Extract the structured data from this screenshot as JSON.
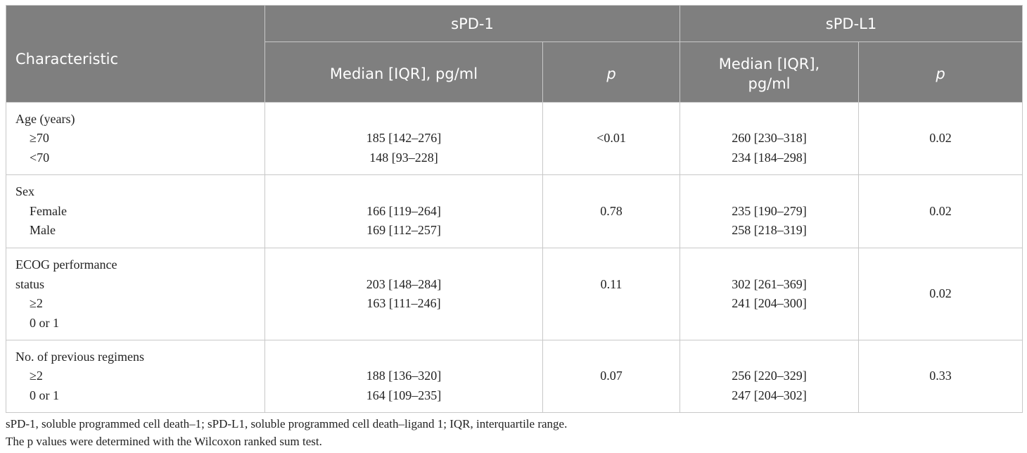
{
  "header": {
    "characteristic": "Characteristic",
    "spd1": "sPD-1",
    "spdl1": "sPD-L1",
    "median_spd1": "Median [IQR], pg/ml",
    "median_spdl1_line1": "Median [IQR],",
    "median_spdl1_line2": "pg/ml",
    "p": "p"
  },
  "rows": [
    {
      "label": "Age (years)",
      "groups": [
        "≥70",
        "<70"
      ],
      "spd1": [
        "185 [142–276]",
        "148 [93–228]"
      ],
      "spd1_p": "<0.01",
      "spdl1": [
        "260 [230–318]",
        "234 [184–298]"
      ],
      "spdl1_p": "0.02"
    },
    {
      "label": "Sex",
      "groups": [
        "Female",
        "Male"
      ],
      "spd1": [
        "166 [119–264]",
        "169 [112–257]"
      ],
      "spd1_p": "0.78",
      "spdl1": [
        "235 [190–279]",
        "258 [218–319]"
      ],
      "spdl1_p": "0.02"
    },
    {
      "label_line1": "ECOG performance",
      "label_line2": "status",
      "groups": [
        "≥2",
        "0 or 1"
      ],
      "spd1": [
        "203 [148–284]",
        "163 [111–246]"
      ],
      "spd1_p": "0.11",
      "spdl1": [
        "302 [261–369]",
        "241 [204–300]"
      ],
      "spdl1_p": "0.02"
    },
    {
      "label": "No. of previous regimens",
      "groups": [
        "≥2",
        "0 or 1"
      ],
      "spd1": [
        "188 [136–320]",
        "164 [109–235]"
      ],
      "spd1_p": "0.07",
      "spdl1": [
        "256 [220–329]",
        "247 [204–302]"
      ],
      "spdl1_p": "0.33"
    }
  ],
  "footnotes": [
    "sPD-1, soluble programmed cell death–1; sPD-L1, soluble programmed cell death–ligand 1; IQR, interquartile range.",
    "The p values were determined with the Wilcoxon ranked sum test."
  ]
}
